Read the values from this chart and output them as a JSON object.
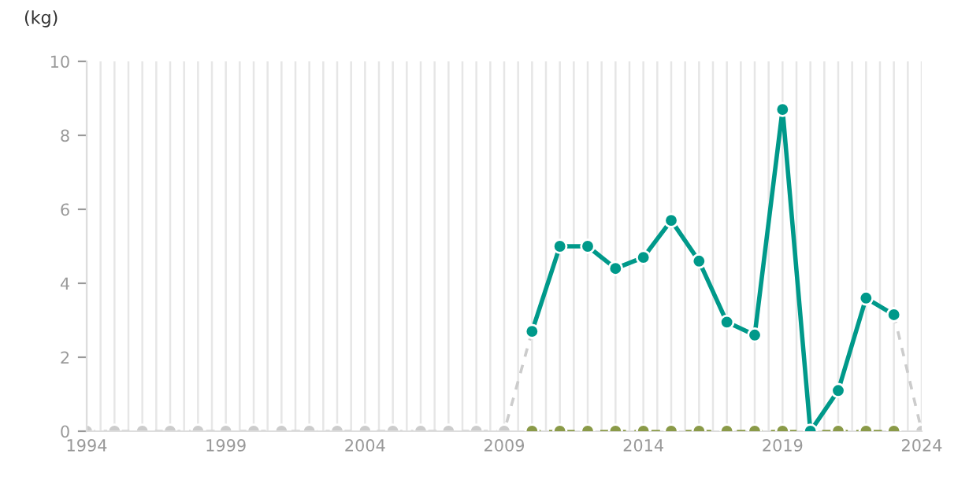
{
  "chart_data": {
    "type": "line",
    "ylabel": "(kg)",
    "x": [
      1994,
      1995,
      1996,
      1997,
      1998,
      1999,
      2000,
      2001,
      2002,
      2003,
      2004,
      2005,
      2006,
      2007,
      2008,
      2009,
      2010,
      2011,
      2012,
      2013,
      2014,
      2015,
      2016,
      2017,
      2018,
      2019,
      2020,
      2021,
      2022,
      2023,
      2024
    ],
    "series": [
      {
        "color": "#cccccc",
        "line_style": "dashed",
        "values": [
          0,
          0,
          0,
          0,
          0,
          0,
          0,
          0,
          0,
          0,
          0,
          0,
          0,
          0,
          0,
          0,
          2.7,
          null,
          null,
          null,
          null,
          null,
          null,
          null,
          null,
          null,
          null,
          null,
          null,
          3.15,
          0
        ]
      },
      {
        "color": "#8a9a48",
        "line_style": "dashed",
        "x": [
          2010,
          2011,
          2012,
          2013,
          2014,
          2015,
          2016,
          2017,
          2018,
          2019,
          2020,
          2021,
          2022,
          2023
        ],
        "values": [
          0,
          0,
          0,
          0,
          0,
          0,
          0,
          0,
          0,
          0,
          0,
          0,
          0,
          0
        ]
      },
      {
        "color": "#00998a",
        "line_style": "solid",
        "x": [
          2010,
          2011,
          2012,
          2013,
          2014,
          2015,
          2016,
          2017,
          2018,
          2019,
          2020,
          2021,
          2022,
          2023
        ],
        "values": [
          2.7,
          5.0,
          5.0,
          4.4,
          4.7,
          5.7,
          4.6,
          2.95,
          2.6,
          8.7,
          0,
          1.1,
          3.6,
          3.15
        ]
      }
    ],
    "xlim": [
      1994,
      2024
    ],
    "xticks": [
      1994,
      1999,
      2004,
      2009,
      2014,
      2019,
      2024
    ],
    "ylim": [
      0,
      10
    ],
    "yticks": [
      0,
      2,
      4,
      6,
      8,
      10
    ],
    "grid": "x",
    "marker": "circle",
    "legend": false
  }
}
